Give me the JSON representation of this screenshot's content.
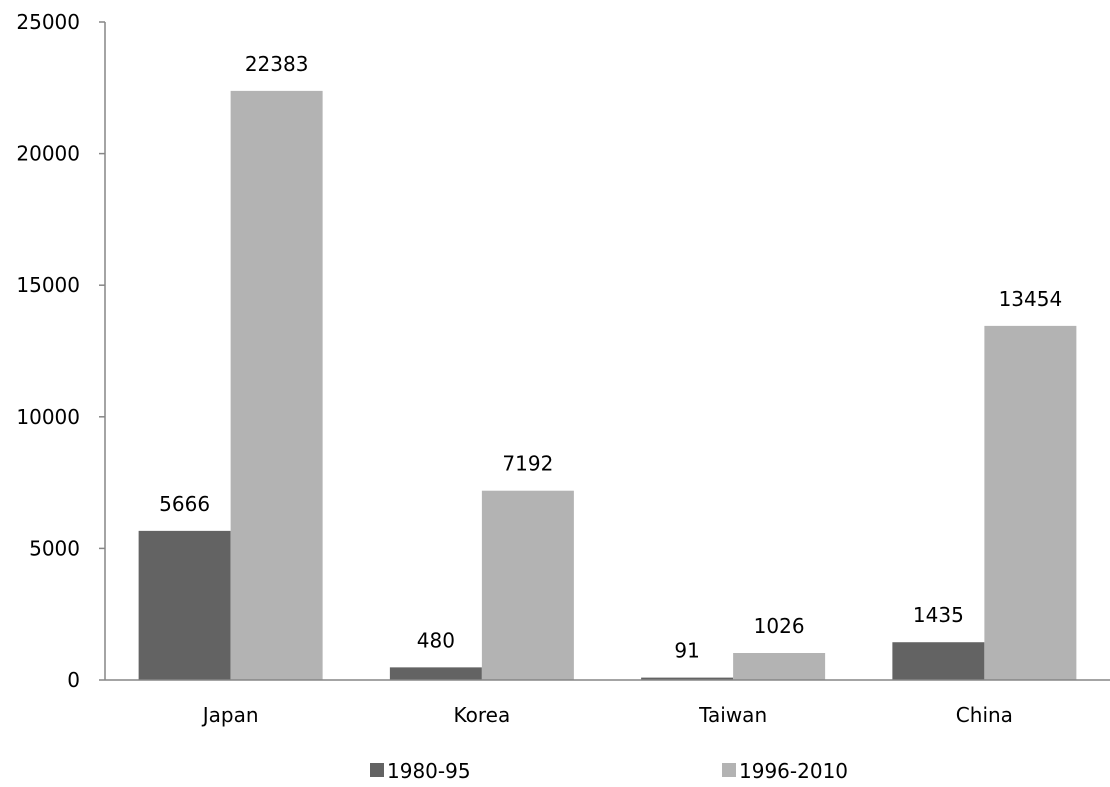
{
  "chart_data": {
    "type": "bar",
    "title": "",
    "xlabel": "",
    "ylabel": "",
    "categories": [
      "Japan",
      "Korea",
      "Taiwan",
      "China"
    ],
    "series": [
      {
        "name": "1980-95",
        "values": [
          5666,
          480,
          91,
          1435
        ],
        "color": "#636363"
      },
      {
        "name": "1996-2010",
        "values": [
          22383,
          7192,
          1026,
          13454
        ],
        "color": "#b3b3b3"
      }
    ],
    "ylim": [
      0,
      25000
    ],
    "yticks": [
      "0",
      "5000",
      "10000",
      "15000",
      "20000",
      "25000"
    ],
    "grid": false,
    "legend_position": "bottom",
    "axis_color": "#868686"
  }
}
